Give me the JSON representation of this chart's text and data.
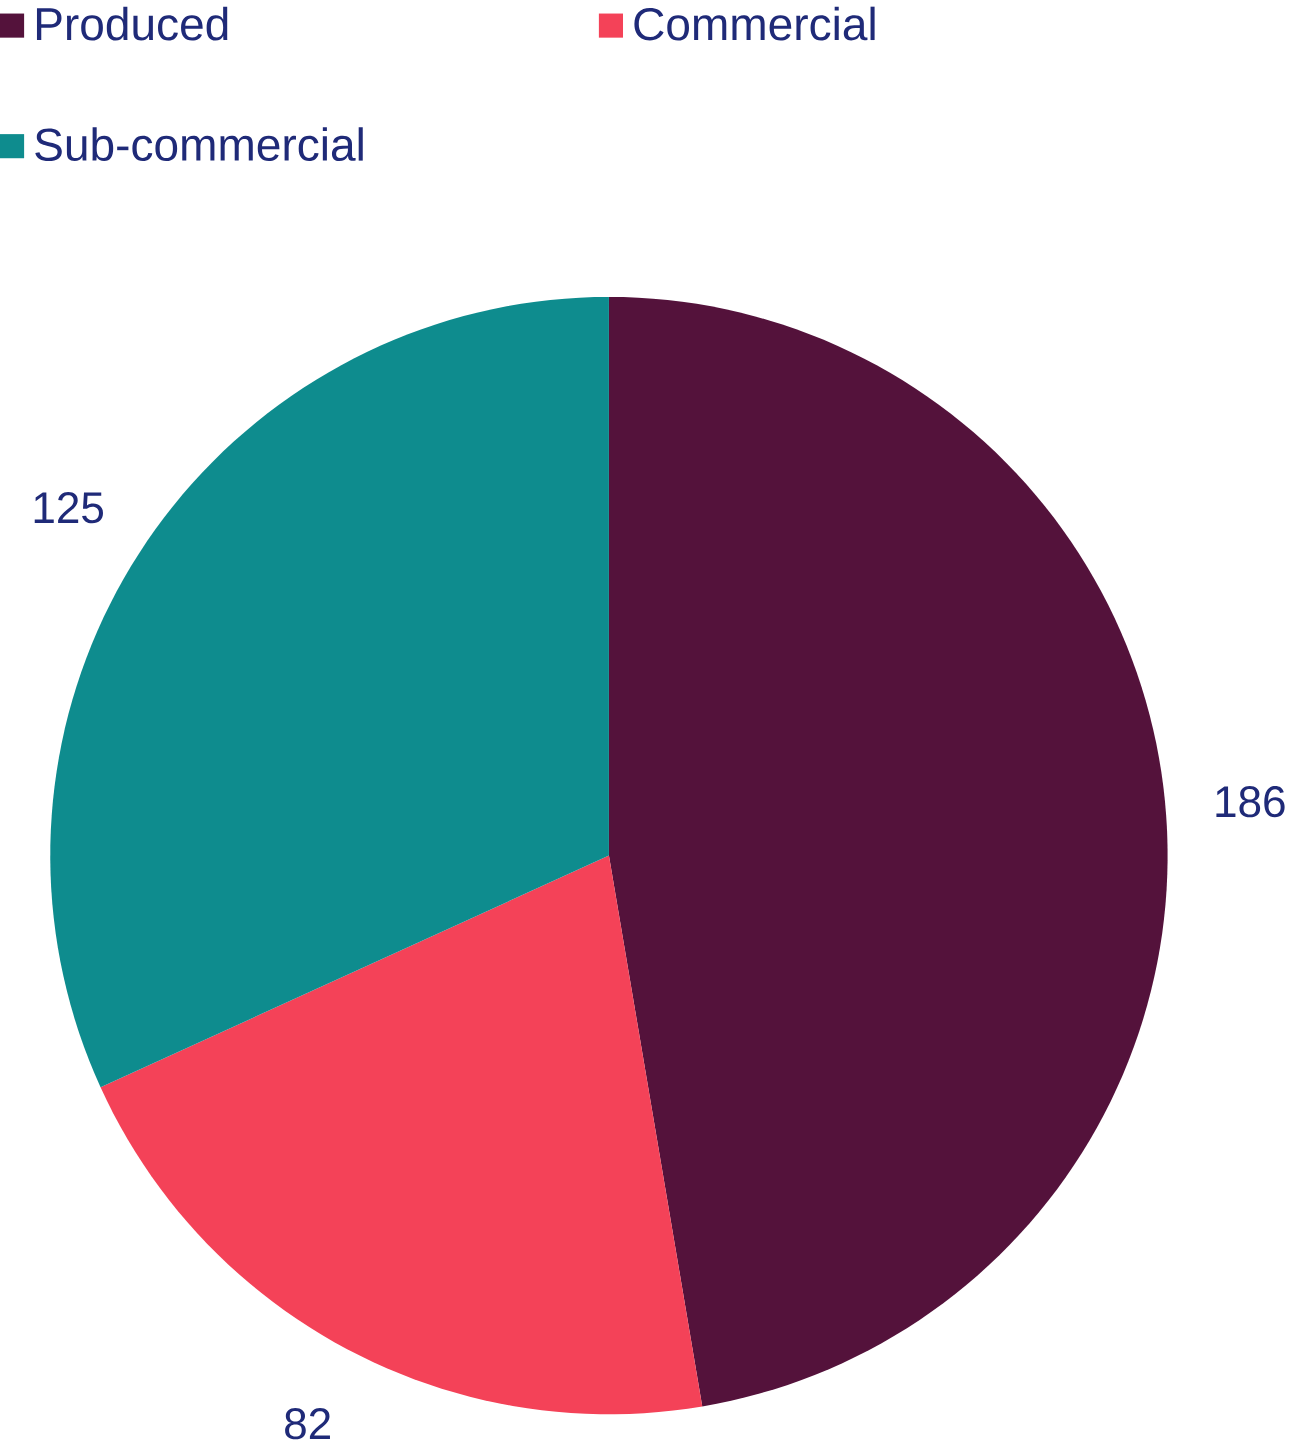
{
  "chart_data": {
    "type": "pie",
    "categories": [
      "Produced",
      "Commercial",
      "Sub-commercial"
    ],
    "values": [
      186,
      82,
      125
    ],
    "colors": [
      "#54123b",
      "#f44258",
      "#0e8c8e"
    ],
    "data_labels": true,
    "legend": "top left"
  }
}
